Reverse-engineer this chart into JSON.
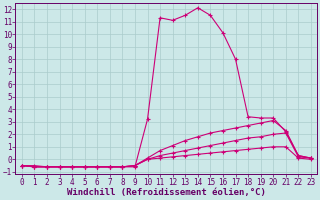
{
  "title": "",
  "xlabel": "Windchill (Refroidissement éolien,°C)",
  "ylabel": "",
  "xlim": [
    -0.5,
    23.5
  ],
  "ylim": [
    -1.2,
    12.5
  ],
  "xticks": [
    0,
    1,
    2,
    3,
    4,
    5,
    6,
    7,
    8,
    9,
    10,
    11,
    12,
    13,
    14,
    15,
    16,
    17,
    18,
    19,
    20,
    21,
    22,
    23
  ],
  "yticks": [
    -1,
    0,
    1,
    2,
    3,
    4,
    5,
    6,
    7,
    8,
    9,
    10,
    11,
    12
  ],
  "background_color": "#cce8e8",
  "grid_color": "#aacccc",
  "line_color": "#cc0077",
  "lines": [
    {
      "x": [
        0,
        1,
        2,
        3,
        4,
        5,
        6,
        7,
        8,
        9,
        10,
        11,
        12,
        13,
        14,
        15,
        16,
        17,
        18,
        19,
        20,
        21,
        22,
        23
      ],
      "y": [
        -0.5,
        -0.5,
        -0.6,
        -0.6,
        -0.6,
        -0.6,
        -0.6,
        -0.6,
        -0.6,
        -0.6,
        3.2,
        11.3,
        11.1,
        11.5,
        12.1,
        11.5,
        10.1,
        8.0,
        3.4,
        3.3,
        3.3,
        2.2,
        0.3,
        0.1
      ]
    },
    {
      "x": [
        0,
        1,
        2,
        3,
        4,
        5,
        6,
        7,
        8,
        9,
        10,
        11,
        12,
        13,
        14,
        15,
        16,
        17,
        18,
        19,
        20,
        21,
        22,
        23
      ],
      "y": [
        -0.5,
        -0.6,
        -0.6,
        -0.6,
        -0.6,
        -0.6,
        -0.6,
        -0.6,
        -0.6,
        -0.5,
        0.1,
        0.7,
        1.1,
        1.5,
        1.8,
        2.1,
        2.3,
        2.5,
        2.7,
        2.9,
        3.1,
        2.3,
        0.3,
        0.1
      ]
    },
    {
      "x": [
        0,
        1,
        2,
        3,
        4,
        5,
        6,
        7,
        8,
        9,
        10,
        11,
        12,
        13,
        14,
        15,
        16,
        17,
        18,
        19,
        20,
        21,
        22,
        23
      ],
      "y": [
        -0.5,
        -0.6,
        -0.6,
        -0.6,
        -0.6,
        -0.6,
        -0.6,
        -0.6,
        -0.6,
        -0.5,
        0.0,
        0.3,
        0.5,
        0.7,
        0.9,
        1.1,
        1.3,
        1.5,
        1.7,
        1.8,
        2.0,
        2.1,
        0.2,
        0.1
      ]
    },
    {
      "x": [
        0,
        1,
        2,
        3,
        4,
        5,
        6,
        7,
        8,
        9,
        10,
        11,
        12,
        13,
        14,
        15,
        16,
        17,
        18,
        19,
        20,
        21,
        22,
        23
      ],
      "y": [
        -0.5,
        -0.6,
        -0.6,
        -0.6,
        -0.6,
        -0.6,
        -0.6,
        -0.6,
        -0.6,
        -0.5,
        0.0,
        0.1,
        0.2,
        0.3,
        0.4,
        0.5,
        0.6,
        0.7,
        0.8,
        0.9,
        1.0,
        1.0,
        0.1,
        0.0
      ]
    }
  ],
  "font_color": "#660066",
  "tick_fontsize": 5.5,
  "label_fontsize": 6.5
}
